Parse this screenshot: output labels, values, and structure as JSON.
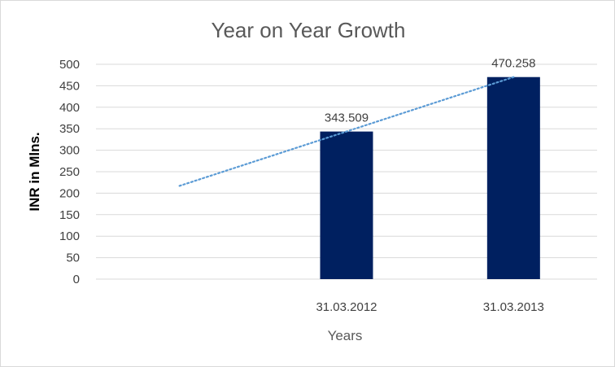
{
  "chart_data": {
    "type": "bar",
    "title": "Year on Year Growth",
    "xlabel": "Years",
    "ylabel": "INR in Mlns.",
    "categories": [
      "",
      "31.03.2012",
      "31.03.2013"
    ],
    "values": [
      null,
      343.509,
      470.258
    ],
    "data_labels": [
      "",
      "343.509",
      "470.258"
    ],
    "ylim": [
      0,
      500
    ],
    "yticks": [
      0,
      50,
      100,
      150,
      200,
      250,
      300,
      350,
      400,
      450,
      500
    ],
    "grid": true,
    "legend": "none",
    "trendline": {
      "type": "linear",
      "style": "dotted",
      "color": "#5b9bd5",
      "start": {
        "category_index": 0,
        "value": 217
      },
      "end": {
        "category_index": 2,
        "value": 470.258
      }
    },
    "colors": {
      "bar": "#002060",
      "grid": "#d9d9d9",
      "trendline": "#5b9bd5"
    }
  }
}
